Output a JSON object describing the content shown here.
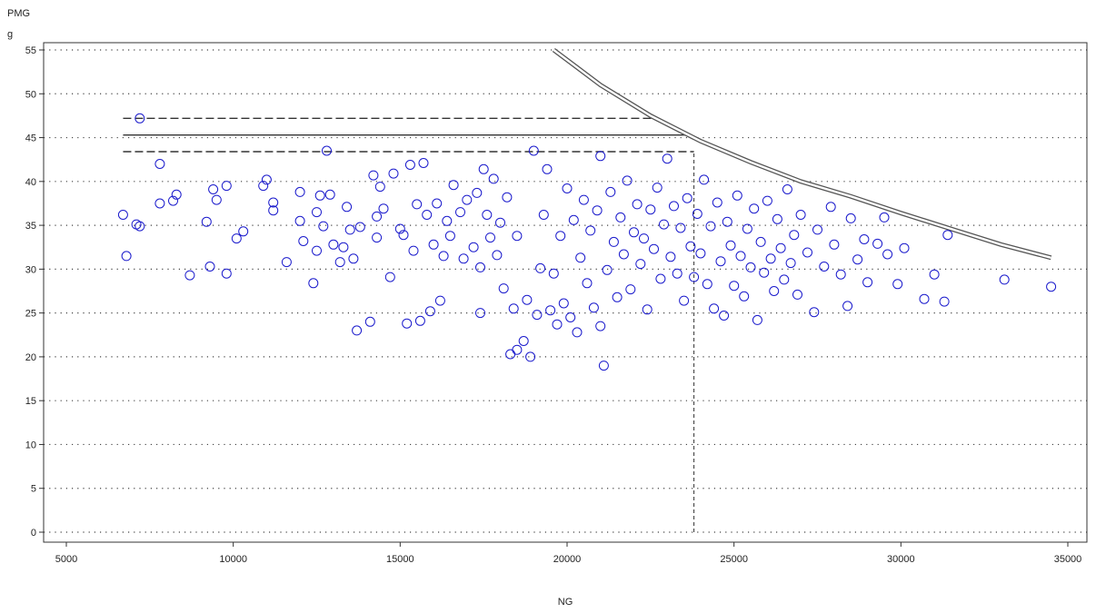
{
  "chart_data": {
    "type": "scatter",
    "ylabel": "PMG",
    "yunit": "g",
    "xlabel": "NG",
    "xlim": [
      5000,
      35000
    ],
    "ylim": [
      0,
      55
    ],
    "xticks": [
      5000,
      10000,
      15000,
      20000,
      25000,
      30000,
      35000
    ],
    "yticks": [
      0,
      5,
      10,
      15,
      20,
      25,
      30,
      35,
      40,
      45,
      50,
      55
    ],
    "grid": "horizontal dotted",
    "marker": "open circle",
    "colors": {
      "points": "#1a1acc",
      "reference_lines": "#333333",
      "frame": "#333333"
    },
    "reference_lines": [
      {
        "style": "dashed",
        "orientation": "horizontal",
        "y": 47.2,
        "x": [
          6700,
          22600
        ]
      },
      {
        "style": "solid",
        "orientation": "horizontal",
        "y": 45.3,
        "x": [
          6700,
          23600
        ]
      },
      {
        "style": "dashed",
        "orientation": "horizontal",
        "y": 43.4,
        "x": [
          6700,
          23800
        ]
      },
      {
        "style": "dashed",
        "orientation": "vertical",
        "x": 23800,
        "y": [
          0,
          43.4
        ]
      }
    ],
    "boundary_curve": {
      "style": "double line",
      "points": [
        [
          19600,
          55
        ],
        [
          21000,
          51
        ],
        [
          22500,
          47.5
        ],
        [
          24000,
          44.6
        ],
        [
          25500,
          42.2
        ],
        [
          27000,
          40
        ],
        [
          28500,
          38.3
        ],
        [
          30000,
          36.4
        ],
        [
          31500,
          34.6
        ],
        [
          33000,
          32.8
        ],
        [
          34500,
          31.3
        ]
      ]
    },
    "points": [
      [
        6700,
        36.2
      ],
      [
        6800,
        31.5
      ],
      [
        7100,
        35.1
      ],
      [
        7200,
        34.9
      ],
      [
        7200,
        47.2
      ],
      [
        7800,
        42
      ],
      [
        7800,
        37.5
      ],
      [
        8200,
        37.8
      ],
      [
        8300,
        38.5
      ],
      [
        8700,
        29.3
      ],
      [
        9200,
        35.4
      ],
      [
        9300,
        30.3
      ],
      [
        9400,
        39.1
      ],
      [
        9500,
        37.9
      ],
      [
        9800,
        29.5
      ],
      [
        9800,
        39.5
      ],
      [
        10100,
        33.5
      ],
      [
        10300,
        34.3
      ],
      [
        10900,
        39.5
      ],
      [
        11000,
        40.2
      ],
      [
        11200,
        37.6
      ],
      [
        11200,
        36.7
      ],
      [
        11600,
        30.8
      ],
      [
        12000,
        35.5
      ],
      [
        12000,
        38.8
      ],
      [
        12100,
        33.2
      ],
      [
        12400,
        28.4
      ],
      [
        12500,
        32.1
      ],
      [
        12500,
        36.5
      ],
      [
        12600,
        38.4
      ],
      [
        12700,
        34.9
      ],
      [
        12800,
        43.5
      ],
      [
        12900,
        38.5
      ],
      [
        13000,
        32.8
      ],
      [
        13200,
        30.8
      ],
      [
        13300,
        32.5
      ],
      [
        13400,
        37.1
      ],
      [
        13500,
        34.5
      ],
      [
        13600,
        31.2
      ],
      [
        13700,
        23
      ],
      [
        13800,
        34.8
      ],
      [
        14100,
        24
      ],
      [
        14200,
        40.7
      ],
      [
        14300,
        36
      ],
      [
        14300,
        33.6
      ],
      [
        14400,
        39.4
      ],
      [
        14500,
        36.9
      ],
      [
        14700,
        29.1
      ],
      [
        14800,
        40.9
      ],
      [
        15000,
        34.6
      ],
      [
        15100,
        33.9
      ],
      [
        15200,
        23.8
      ],
      [
        15300,
        41.9
      ],
      [
        15400,
        32.1
      ],
      [
        15500,
        37.4
      ],
      [
        15600,
        24.1
      ],
      [
        15700,
        42.1
      ],
      [
        15800,
        36.2
      ],
      [
        15900,
        25.2
      ],
      [
        16000,
        32.8
      ],
      [
        16100,
        37.5
      ],
      [
        16200,
        26.4
      ],
      [
        16300,
        31.5
      ],
      [
        16400,
        35.5
      ],
      [
        16500,
        33.8
      ],
      [
        16600,
        39.6
      ],
      [
        16800,
        36.5
      ],
      [
        16900,
        31.2
      ],
      [
        17000,
        37.9
      ],
      [
        17200,
        32.5
      ],
      [
        17300,
        38.7
      ],
      [
        17400,
        25
      ],
      [
        17400,
        30.2
      ],
      [
        17500,
        41.4
      ],
      [
        17600,
        36.2
      ],
      [
        17700,
        33.6
      ],
      [
        17800,
        40.3
      ],
      [
        17900,
        31.6
      ],
      [
        18000,
        35.3
      ],
      [
        18100,
        27.8
      ],
      [
        18200,
        38.2
      ],
      [
        18300,
        20.3
      ],
      [
        18400,
        25.5
      ],
      [
        18500,
        33.8
      ],
      [
        18500,
        20.8
      ],
      [
        18700,
        21.8
      ],
      [
        18800,
        26.5
      ],
      [
        18900,
        20
      ],
      [
        19000,
        43.5
      ],
      [
        19100,
        24.8
      ],
      [
        19200,
        30.1
      ],
      [
        19300,
        36.2
      ],
      [
        19400,
        41.4
      ],
      [
        19500,
        25.3
      ],
      [
        19600,
        29.5
      ],
      [
        19700,
        23.7
      ],
      [
        19800,
        33.8
      ],
      [
        19900,
        26.1
      ],
      [
        20000,
        39.2
      ],
      [
        20100,
        24.5
      ],
      [
        20200,
        35.6
      ],
      [
        20300,
        22.8
      ],
      [
        20400,
        31.3
      ],
      [
        20500,
        37.9
      ],
      [
        20600,
        28.4
      ],
      [
        20700,
        34.4
      ],
      [
        20800,
        25.6
      ],
      [
        20900,
        36.7
      ],
      [
        21000,
        23.5
      ],
      [
        21000,
        42.9
      ],
      [
        21100,
        19
      ],
      [
        21200,
        29.9
      ],
      [
        21300,
        38.8
      ],
      [
        21400,
        33.1
      ],
      [
        21500,
        26.8
      ],
      [
        21600,
        35.9
      ],
      [
        21700,
        31.7
      ],
      [
        21800,
        40.1
      ],
      [
        21900,
        27.7
      ],
      [
        22000,
        34.2
      ],
      [
        22100,
        37.4
      ],
      [
        22200,
        30.6
      ],
      [
        22300,
        33.5
      ],
      [
        22400,
        25.4
      ],
      [
        22500,
        36.8
      ],
      [
        22600,
        32.3
      ],
      [
        22700,
        39.3
      ],
      [
        22800,
        28.9
      ],
      [
        22900,
        35.1
      ],
      [
        23000,
        42.6
      ],
      [
        23100,
        31.4
      ],
      [
        23200,
        37.2
      ],
      [
        23300,
        29.5
      ],
      [
        23400,
        34.7
      ],
      [
        23500,
        26.4
      ],
      [
        23600,
        38.1
      ],
      [
        23700,
        32.6
      ],
      [
        23800,
        29.1
      ],
      [
        23900,
        36.3
      ],
      [
        24000,
        31.8
      ],
      [
        24100,
        40.2
      ],
      [
        24200,
        28.3
      ],
      [
        24300,
        34.9
      ],
      [
        24400,
        25.5
      ],
      [
        24500,
        37.6
      ],
      [
        24600,
        30.9
      ],
      [
        24700,
        24.7
      ],
      [
        24800,
        35.4
      ],
      [
        24900,
        32.7
      ],
      [
        25000,
        28.1
      ],
      [
        25100,
        38.4
      ],
      [
        25200,
        31.5
      ],
      [
        25300,
        26.9
      ],
      [
        25400,
        34.6
      ],
      [
        25500,
        30.2
      ],
      [
        25600,
        36.9
      ],
      [
        25700,
        24.2
      ],
      [
        25800,
        33.1
      ],
      [
        25900,
        29.6
      ],
      [
        26000,
        37.8
      ],
      [
        26100,
        31.2
      ],
      [
        26200,
        27.5
      ],
      [
        26300,
        35.7
      ],
      [
        26400,
        32.4
      ],
      [
        26500,
        28.8
      ],
      [
        26600,
        39.1
      ],
      [
        26700,
        30.7
      ],
      [
        26800,
        33.9
      ],
      [
        26900,
        27.1
      ],
      [
        27000,
        36.2
      ],
      [
        27200,
        31.9
      ],
      [
        27400,
        25.1
      ],
      [
        27500,
        34.5
      ],
      [
        27700,
        30.3
      ],
      [
        27900,
        37.1
      ],
      [
        28000,
        32.8
      ],
      [
        28200,
        29.4
      ],
      [
        28400,
        25.8
      ],
      [
        28500,
        35.8
      ],
      [
        28700,
        31.1
      ],
      [
        28900,
        33.4
      ],
      [
        29000,
        28.5
      ],
      [
        29300,
        32.9
      ],
      [
        29500,
        35.9
      ],
      [
        29600,
        31.7
      ],
      [
        29900,
        28.3
      ],
      [
        30100,
        32.4
      ],
      [
        30700,
        26.6
      ],
      [
        31000,
        29.4
      ],
      [
        31300,
        26.3
      ],
      [
        31400,
        33.9
      ],
      [
        33100,
        28.8
      ],
      [
        34500,
        28
      ]
    ]
  }
}
